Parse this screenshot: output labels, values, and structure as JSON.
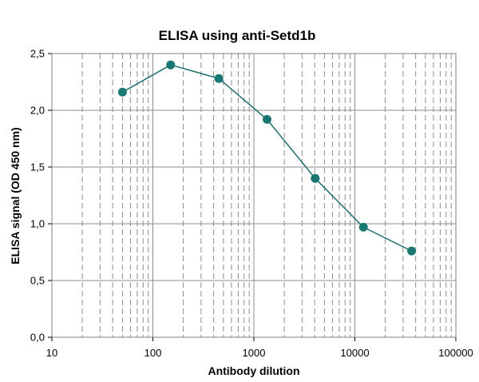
{
  "chart_data": {
    "type": "line",
    "title": "ELISA using anti-Setd1b",
    "xlabel": "Antibody dilution",
    "ylabel": "ELISA signal (OD 450 nm)",
    "x_scale": "log",
    "xlim": [
      10,
      100000
    ],
    "ylim": [
      0,
      2.5
    ],
    "x_tick_labels": [
      "10",
      "100",
      "1000",
      "10000",
      "100000"
    ],
    "y_tick_labels": [
      "0,0",
      "0,5",
      "1,0",
      "1,5",
      "2,0",
      "2,5"
    ],
    "grid": true,
    "legend": "none",
    "series": [
      {
        "x": [
          50,
          150,
          450,
          1350,
          4050,
          12150,
          36450
        ],
        "y": [
          2.16,
          2.4,
          2.28,
          1.92,
          1.4,
          0.97,
          0.76
        ]
      }
    ],
    "colors": {
      "line": "#1f6f6f",
      "marker": "#1a7873",
      "grid": "#8c8c8c",
      "frame": "#808080"
    }
  }
}
